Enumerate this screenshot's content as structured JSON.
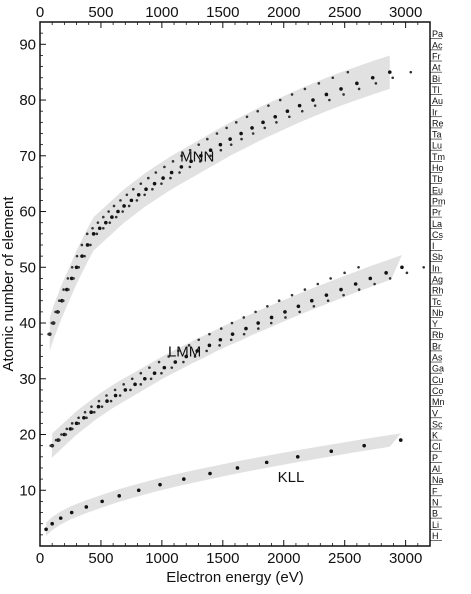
{
  "chart_data": {
    "type": "scatter",
    "xlabel": "Electron energy (eV)",
    "ylabel": "Atomic number of element",
    "xlim": [
      0,
      3200
    ],
    "ylim": [
      0,
      94
    ],
    "x_ticks": [
      0,
      500,
      1000,
      1500,
      2000,
      2500,
      3000
    ],
    "y_ticks": [
      10,
      20,
      30,
      40,
      50,
      60,
      70,
      80,
      90
    ],
    "top_axis_ticks": [
      0,
      500,
      1000,
      1500,
      2000,
      2500,
      3000
    ],
    "grid": false,
    "legend": "none",
    "right_axis_elements": [
      {
        "z": 1,
        "symbol": "H"
      },
      {
        "z": 3,
        "symbol": "Li"
      },
      {
        "z": 5,
        "symbol": "B"
      },
      {
        "z": 7,
        "symbol": "N"
      },
      {
        "z": 9,
        "symbol": "F"
      },
      {
        "z": 11,
        "symbol": "Na"
      },
      {
        "z": 13,
        "symbol": "Al"
      },
      {
        "z": 15,
        "symbol": "P"
      },
      {
        "z": 17,
        "symbol": "Cl"
      },
      {
        "z": 19,
        "symbol": "K"
      },
      {
        "z": 21,
        "symbol": "Sc"
      },
      {
        "z": 23,
        "symbol": "V"
      },
      {
        "z": 25,
        "symbol": "Mn"
      },
      {
        "z": 27,
        "symbol": "Co"
      },
      {
        "z": 29,
        "symbol": "Cu"
      },
      {
        "z": 31,
        "symbol": "Ga"
      },
      {
        "z": 33,
        "symbol": "As"
      },
      {
        "z": 35,
        "symbol": "Br"
      },
      {
        "z": 37,
        "symbol": "Rb"
      },
      {
        "z": 39,
        "symbol": "Y"
      },
      {
        "z": 41,
        "symbol": "Nb"
      },
      {
        "z": 43,
        "symbol": "Tc"
      },
      {
        "z": 45,
        "symbol": "Rh"
      },
      {
        "z": 47,
        "symbol": "Ag"
      },
      {
        "z": 49,
        "symbol": "In"
      },
      {
        "z": 51,
        "symbol": "Sb"
      },
      {
        "z": 53,
        "symbol": "I"
      },
      {
        "z": 55,
        "symbol": "Cs"
      },
      {
        "z": 57,
        "symbol": "La"
      },
      {
        "z": 59,
        "symbol": "Pr"
      },
      {
        "z": 61,
        "symbol": "Pm"
      },
      {
        "z": 63,
        "symbol": "Eu"
      },
      {
        "z": 65,
        "symbol": "Tb"
      },
      {
        "z": 67,
        "symbol": "Ho"
      },
      {
        "z": 69,
        "symbol": "Tm"
      },
      {
        "z": 71,
        "symbol": "Lu"
      },
      {
        "z": 73,
        "symbol": "Ta"
      },
      {
        "z": 75,
        "symbol": "Re"
      },
      {
        "z": 77,
        "symbol": "Ir"
      },
      {
        "z": 79,
        "symbol": "Au"
      },
      {
        "z": 81,
        "symbol": "Tl"
      },
      {
        "z": 83,
        "symbol": "Bi"
      },
      {
        "z": 85,
        "symbol": "At"
      },
      {
        "z": 87,
        "symbol": "Fr"
      },
      {
        "z": 89,
        "symbol": "Ac"
      },
      {
        "z": 91,
        "symbol": "Pa"
      }
    ],
    "annotations": [
      {
        "text": "KLL",
        "x": 1950,
        "y": 11.5
      },
      {
        "text": "LMM",
        "x": 1050,
        "y": 34
      },
      {
        "text": "MNN",
        "x": 1150,
        "y": 69
      }
    ],
    "series": [
      {
        "name": "KLL",
        "x": [
          50,
          100,
          170,
          260,
          380,
          510,
          650,
          810,
          985,
          1180,
          1395,
          1620,
          1860,
          2115,
          2390,
          2660,
          2960
        ],
        "y": [
          3,
          4,
          5,
          6,
          7,
          8,
          9,
          10,
          11,
          12,
          13,
          14,
          15,
          16,
          17,
          18,
          19
        ]
      },
      {
        "name": "LMM",
        "x": [
          100,
          150,
          200,
          250,
          300,
          360,
          420,
          480,
          550,
          620,
          700,
          780,
          860,
          940,
          1020,
          1110,
          1200,
          1290,
          1390,
          1480,
          1580,
          1690,
          1790,
          1900,
          2010,
          2120,
          2230,
          2350,
          2470,
          2590,
          2710,
          2840,
          2970
        ],
        "y": [
          18,
          19,
          20,
          21,
          22,
          23,
          24,
          25,
          26,
          27,
          28,
          29,
          30,
          31,
          32,
          33,
          34,
          35,
          36,
          37,
          38,
          39,
          40,
          41,
          42,
          43,
          44,
          45,
          46,
          47,
          48,
          49,
          50
        ]
      },
      {
        "name": "MNN",
        "x": [
          80,
          110,
          145,
          180,
          220,
          260,
          300,
          345,
          390,
          440,
          490,
          540,
          590,
          640,
          690,
          750,
          810,
          870,
          940,
          1010,
          1080,
          1160,
          1240,
          1320,
          1400,
          1480,
          1560,
          1650,
          1740,
          1830,
          1930,
          2030,
          2130,
          2240,
          2350,
          2470,
          2600,
          2730,
          2870
        ],
        "y": [
          38,
          40,
          42,
          44,
          46,
          48,
          50,
          52,
          54,
          56,
          57,
          58,
          59,
          60,
          61,
          62,
          63,
          64,
          65,
          66,
          67,
          68,
          69,
          70,
          71,
          72,
          73,
          74,
          75,
          76,
          77,
          78,
          79,
          80,
          81,
          82,
          83,
          84,
          85
        ]
      }
    ]
  }
}
